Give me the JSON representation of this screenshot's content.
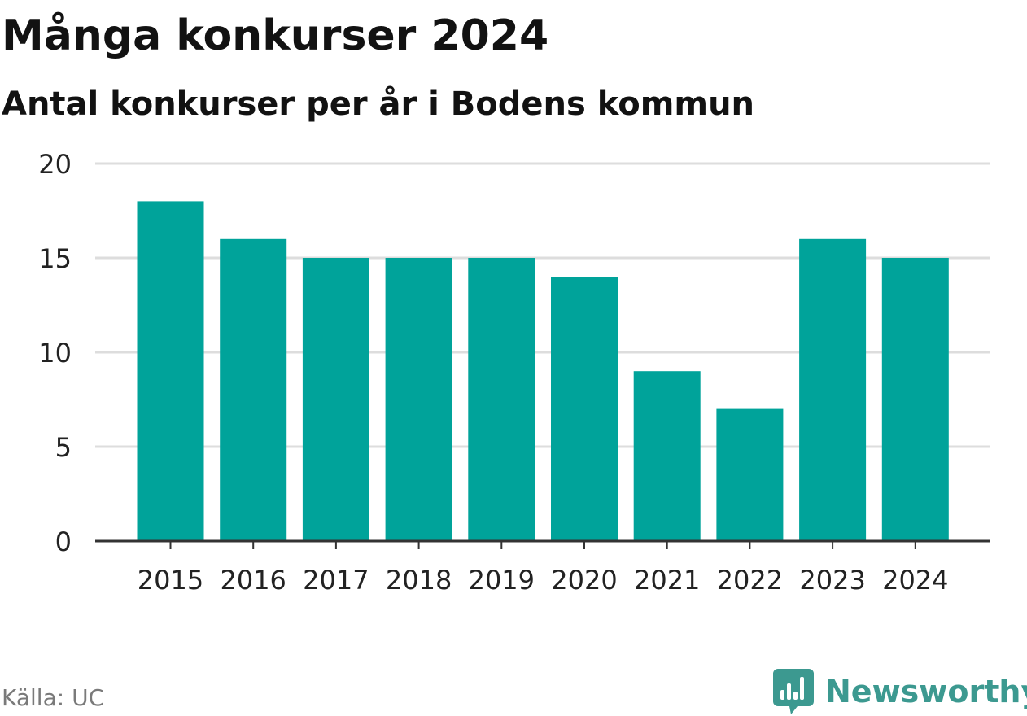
{
  "chart_data": {
    "type": "bar",
    "title": "Många konkurser 2024",
    "subtitle": "Antal konkurser per år i Bodens kommun",
    "categories": [
      "2015",
      "2016",
      "2017",
      "2018",
      "2019",
      "2020",
      "2021",
      "2022",
      "2023",
      "2024"
    ],
    "values": [
      18,
      16,
      15,
      15,
      15,
      14,
      9,
      7,
      16,
      15
    ],
    "ylim": [
      0,
      20
    ],
    "yticks": [
      0,
      5,
      10,
      15,
      20
    ],
    "grid": true,
    "bar_color": "#00a39a",
    "grid_color": "#dddddd",
    "axis_color": "#333333"
  },
  "source": "Källa: UC",
  "brand": {
    "name": "Newsworthy",
    "color": "#3c9990",
    "icon": "bar-chart-speech-bubble-icon"
  }
}
